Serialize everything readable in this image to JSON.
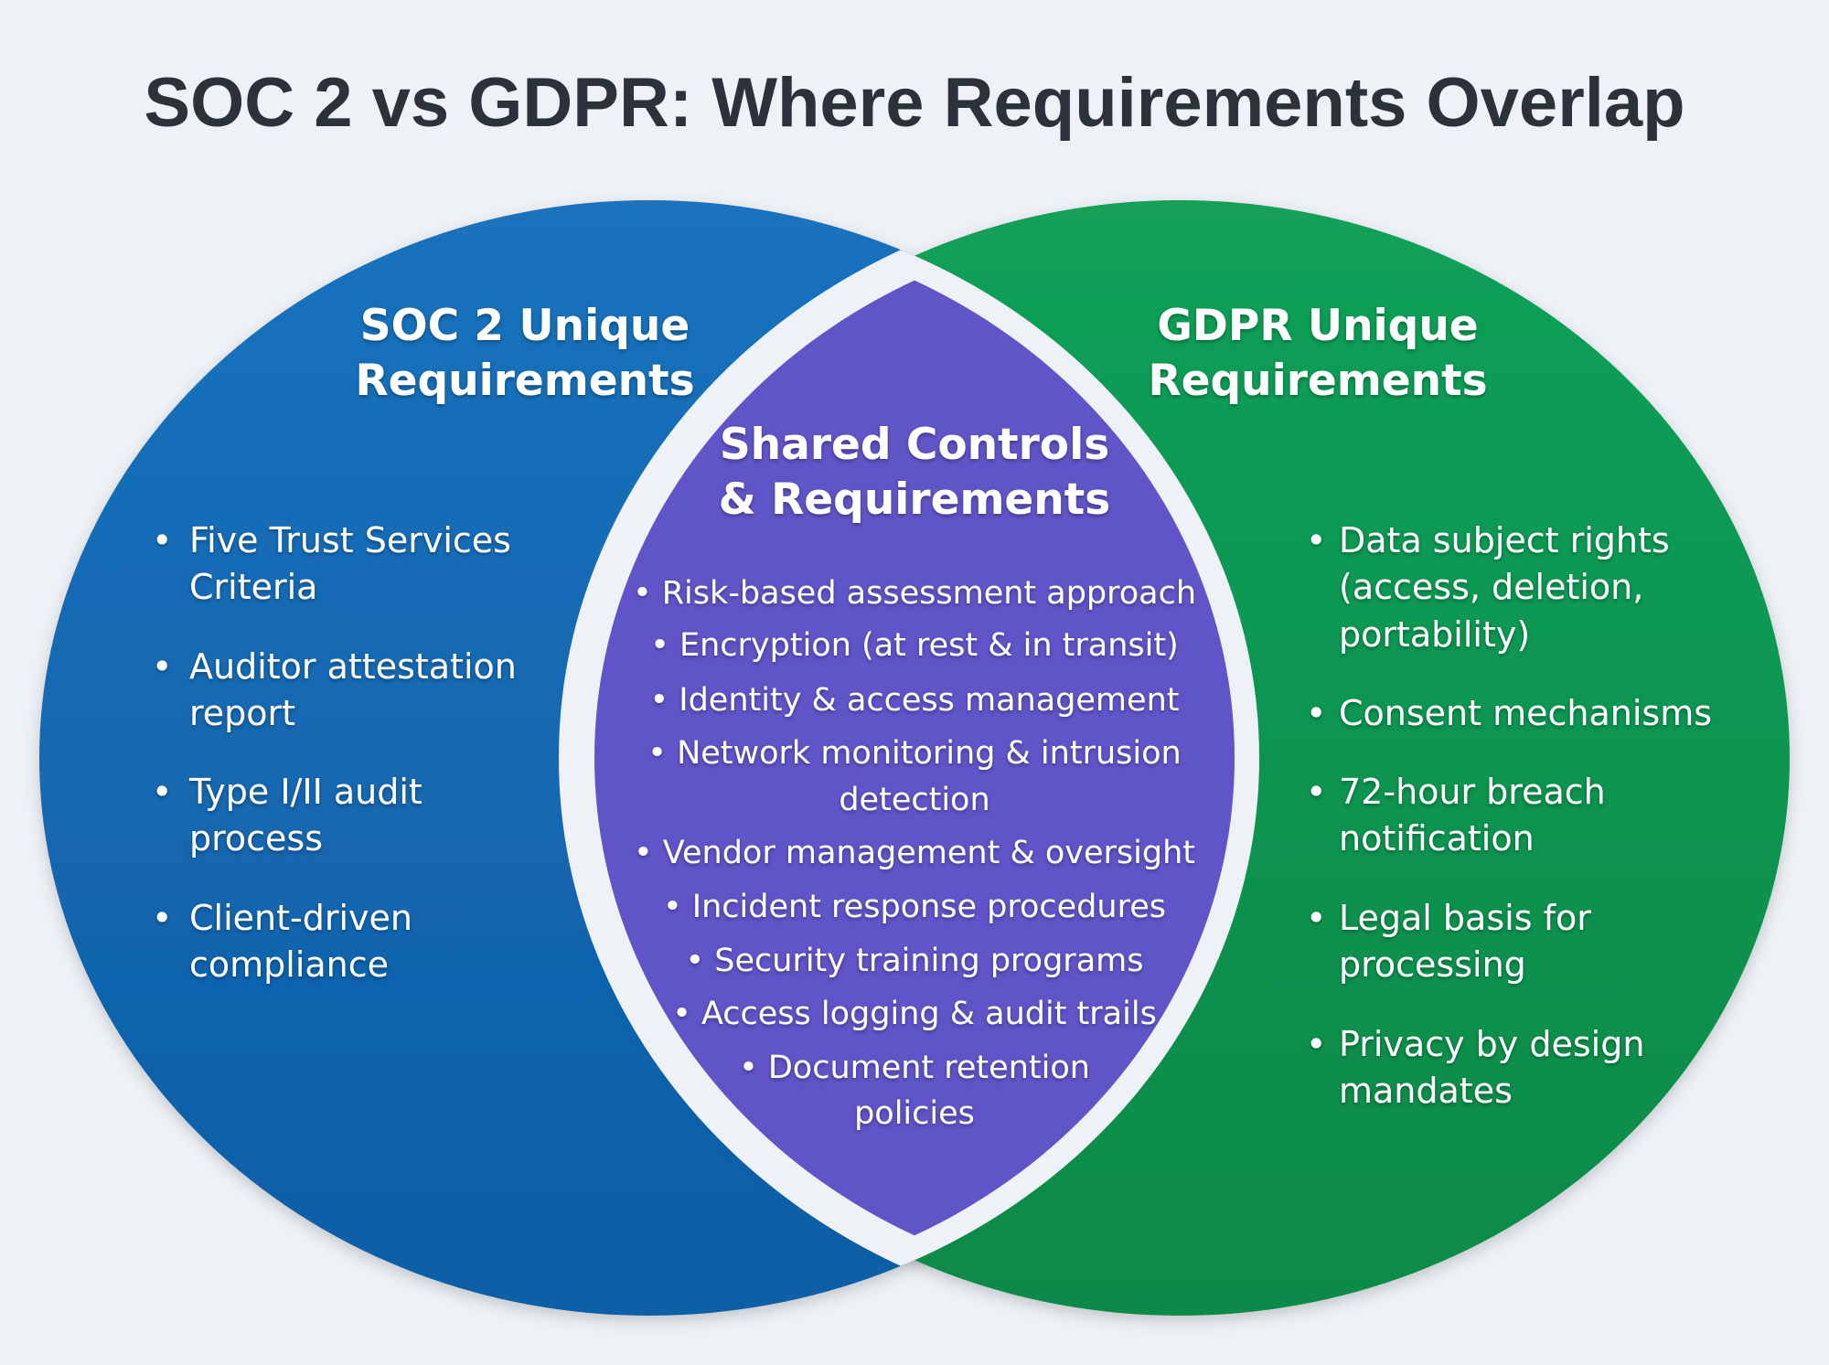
{
  "title": "SOC 2 vs GDPR: Where Requirements Overlap",
  "colors": {
    "soc2": "#0f66b0",
    "gdpr": "#0b9650",
    "shared": "#5f55c8",
    "background": "#eef1f6",
    "title": "#2b323c"
  },
  "soc2": {
    "heading": [
      "SOC 2 Unique",
      "Requirements"
    ],
    "items": [
      [
        "Five Trust Services",
        "Criteria"
      ],
      [
        "Auditor attestation",
        "report"
      ],
      [
        "Type I/II audit",
        "process"
      ],
      [
        "Client-driven",
        "compliance"
      ]
    ]
  },
  "gdpr": {
    "heading": [
      "GDPR Unique",
      "Requirements"
    ],
    "items": [
      [
        "Data subject rights",
        "(access, deletion,",
        "portability)"
      ],
      [
        "Consent mechanisms"
      ],
      [
        "72-hour breach",
        "notification"
      ],
      [
        "Legal basis for",
        "processing"
      ],
      [
        "Privacy by design",
        "mandates"
      ]
    ]
  },
  "shared": {
    "heading": [
      "Shared Controls",
      "& Requirements"
    ],
    "lines": [
      "• Risk-based assessment approach",
      "• Encryption (at rest & in transit)",
      "• Identity & access management",
      "• Network monitoring & intrusion",
      "detection",
      "• Vendor management & oversight",
      "• Incident response procedures",
      "• Security training programs",
      "• Access logging & audit trails",
      "• Document retention",
      "policies"
    ]
  }
}
